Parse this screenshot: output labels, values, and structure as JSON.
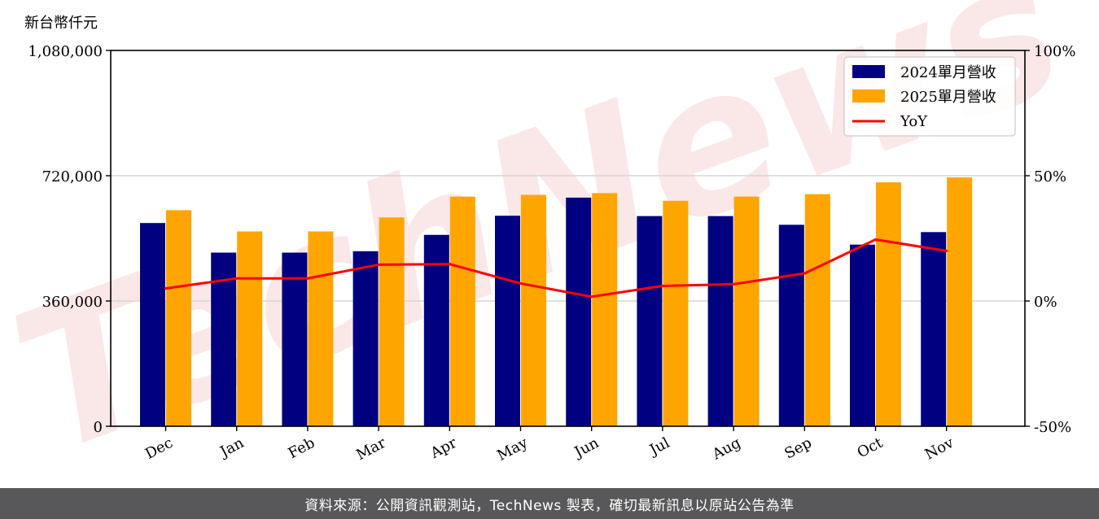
{
  "chart_data": {
    "type": "bar",
    "unit_label": "新台幣仟元",
    "categories": [
      "Dec",
      "Jan",
      "Feb",
      "Mar",
      "Apr",
      "May",
      "Jun",
      "Jul",
      "Aug",
      "Sep",
      "Oct",
      "Nov"
    ],
    "series": [
      {
        "name": "2024單月營收",
        "type": "bar",
        "axis": "left",
        "color": "#000080",
        "values": [
          584000,
          499000,
          499000,
          503000,
          550000,
          605000,
          657000,
          604000,
          604000,
          579000,
          522000,
          558000
        ]
      },
      {
        "name": "2025單月營收",
        "type": "bar",
        "axis": "left",
        "color": "#ffa500",
        "values": [
          621000,
          560000,
          560000,
          600000,
          660000,
          665000,
          670000,
          648000,
          660000,
          667000,
          701000,
          715000
        ]
      },
      {
        "name": "YoY",
        "type": "line",
        "axis": "right",
        "color": "#ff0000",
        "values": [
          0.05,
          0.09,
          0.09,
          0.145,
          0.147,
          0.07,
          0.017,
          0.06,
          0.067,
          0.11,
          0.245,
          0.2
        ]
      }
    ],
    "y_left": {
      "range": [
        0,
        1080000
      ],
      "ticks": [
        0,
        360000,
        720000,
        1080000
      ],
      "tick_labels": [
        "0",
        "360,000",
        "720,000",
        "1,080,000"
      ]
    },
    "y_right": {
      "range": [
        -0.5,
        1.0
      ],
      "ticks": [
        -0.5,
        0,
        0.5,
        1.0
      ],
      "tick_labels": [
        "-50%",
        "0%",
        "50%",
        "100%"
      ]
    },
    "grid": "horizontal",
    "legend_position": "top-right"
  },
  "watermark": "TechNews",
  "footer": "資料來源：公開資訊觀測站，TechNews 製表，確切最新訊息以原站公告為準"
}
